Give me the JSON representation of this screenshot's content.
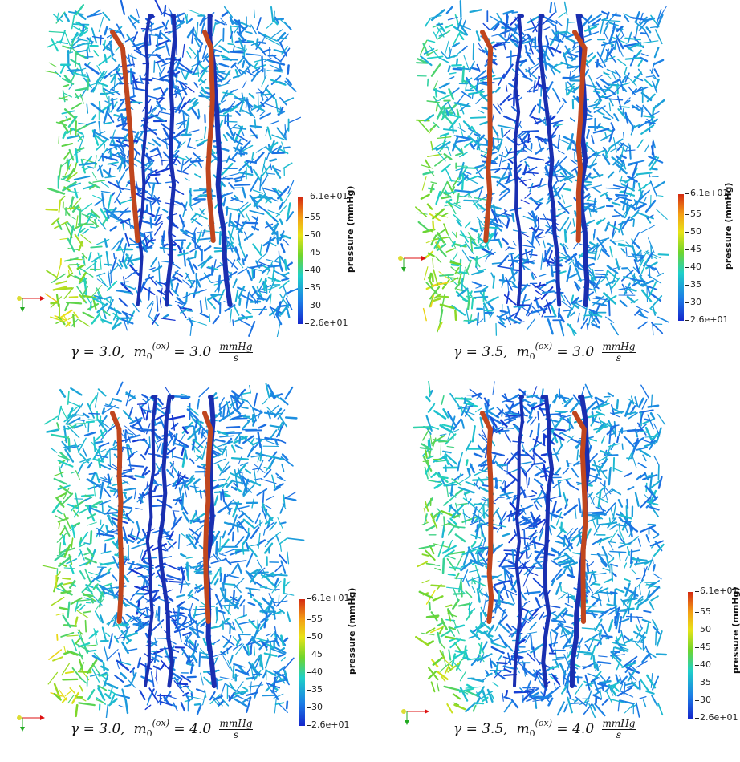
{
  "colorbar": {
    "title": "pressure (mmHg)",
    "max_label": "6.1e+01",
    "min_label": "2.6e+01",
    "ticks": [
      "55",
      "50",
      "45",
      "40",
      "35",
      "30"
    ]
  },
  "panels": [
    {
      "gamma": "3.0",
      "m0": "3.0",
      "unit_num": "mmHg",
      "unit_den": "s"
    },
    {
      "gamma": "3.5",
      "m0": "3.0",
      "unit_num": "mmHg",
      "unit_den": "s"
    },
    {
      "gamma": "3.0",
      "m0": "4.0",
      "unit_num": "mmHg",
      "unit_den": "s"
    },
    {
      "gamma": "3.5",
      "m0": "4.0",
      "unit_num": "mmHg",
      "unit_den": "s"
    }
  ],
  "caption_parts": {
    "gamma_sym": "γ = ",
    "m_sym": "m",
    "sup": "(ox)",
    "sub": "0",
    "eq": " = "
  },
  "colors": {
    "artery": "#c0461e",
    "vein": "#1a2fb0"
  }
}
